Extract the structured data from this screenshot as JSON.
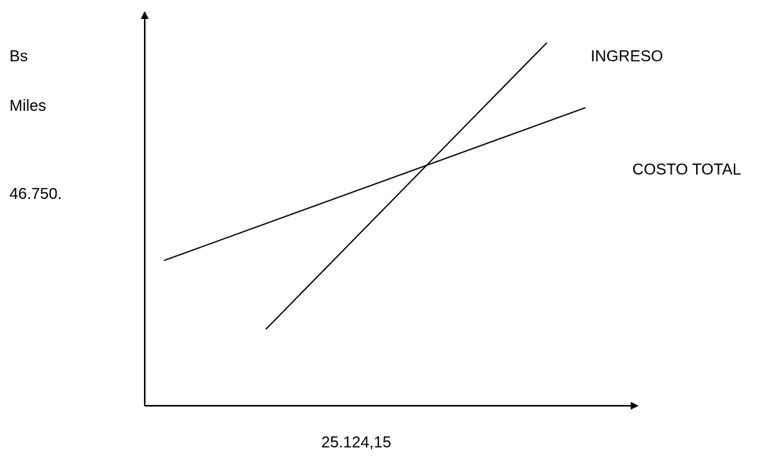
{
  "chart_data": {
    "type": "line",
    "ylabel_lines": [
      "Bs",
      "Miles"
    ],
    "y_value_label": "46.750.",
    "x_value_label": "25.124,15",
    "series": [
      {
        "name": "INGRESO",
        "points": [
          [
            0.25,
            0.2
          ],
          [
            0.83,
            0.95
          ]
        ]
      },
      {
        "name": "COSTO TOTAL",
        "points": [
          [
            0.04,
            0.38
          ],
          [
            0.91,
            0.78
          ]
        ]
      }
    ],
    "xlim": [
      0,
      1
    ],
    "ylim": [
      0,
      1
    ],
    "grid": false,
    "legend": "none",
    "colors": {
      "line": "#000000",
      "axis": "#000000",
      "background": "#ffffff"
    }
  }
}
